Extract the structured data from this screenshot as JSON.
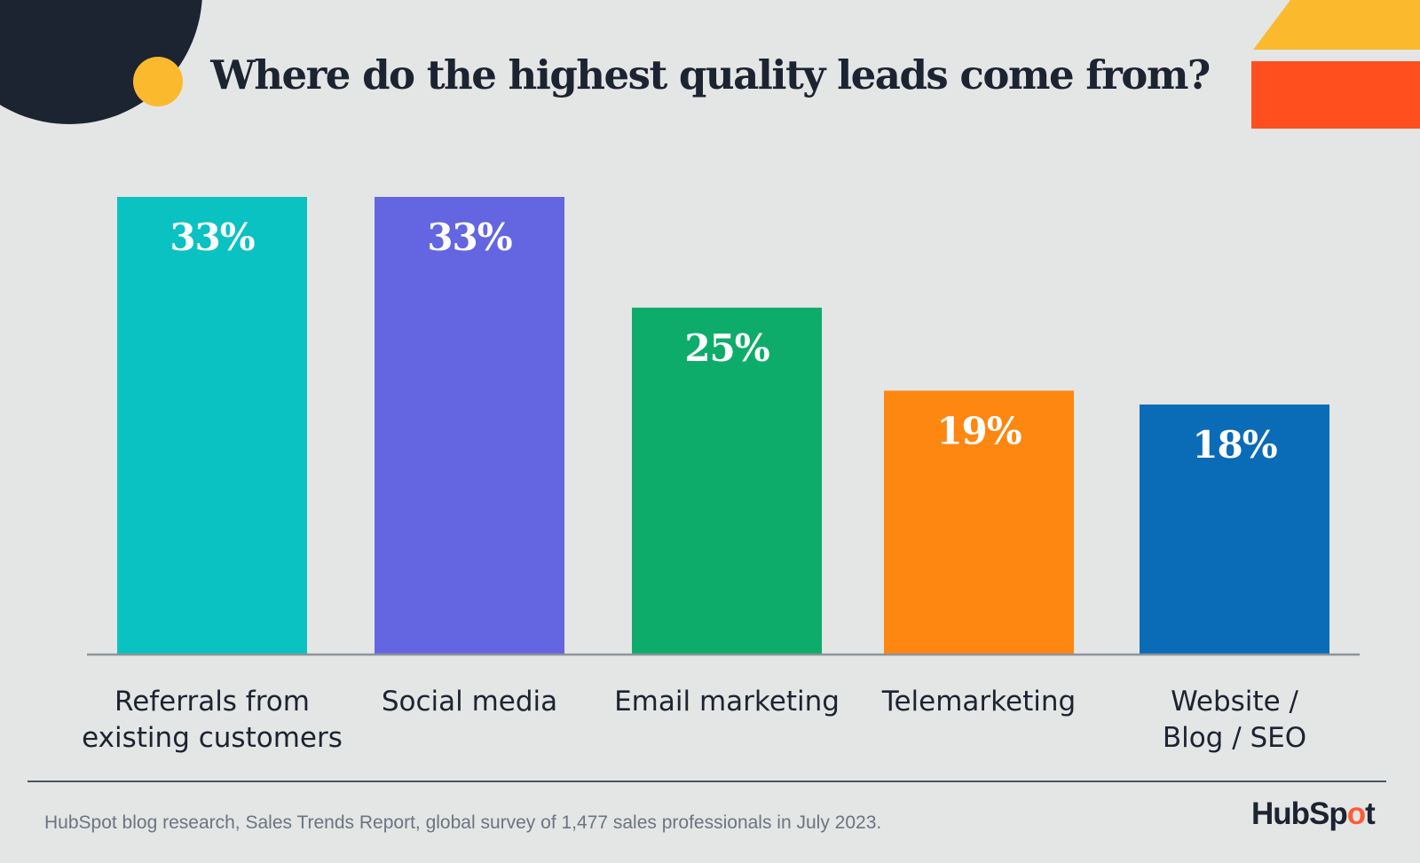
{
  "title": "Where do the highest quality leads come from?",
  "footnote": "HubSpot blog research, Sales Trends Report, global survey of 1,477 sales professionals in July 2023.",
  "logo": {
    "text_before": "HubSp",
    "text_o": "o",
    "text_after": "t",
    "accent": "#ff5c35"
  },
  "colors": {
    "background": "#e4e6e5",
    "dark_circle": "#1c2331",
    "yellow": "#fbb92e",
    "red_orange": "#ff4f1f"
  },
  "chart_data": {
    "type": "bar",
    "title": "Where do the highest quality leads come from?",
    "categories": [
      [
        "Referrals from",
        "existing customers"
      ],
      [
        "Social media"
      ],
      [
        "Email marketing"
      ],
      [
        "Telemarketing"
      ],
      [
        "Website /",
        "Blog / SEO"
      ]
    ],
    "values": [
      33,
      33,
      25,
      19,
      18
    ],
    "value_labels": [
      "33%",
      "33%",
      "25%",
      "19%",
      "18%"
    ],
    "bar_colors": [
      "#0bc2c2",
      "#6366e0",
      "#0eac6a",
      "#fd8710",
      "#0a6bb7"
    ],
    "ylim": [
      0,
      33
    ],
    "xlabel": "",
    "ylabel": "",
    "grid": false,
    "legend": "none"
  }
}
